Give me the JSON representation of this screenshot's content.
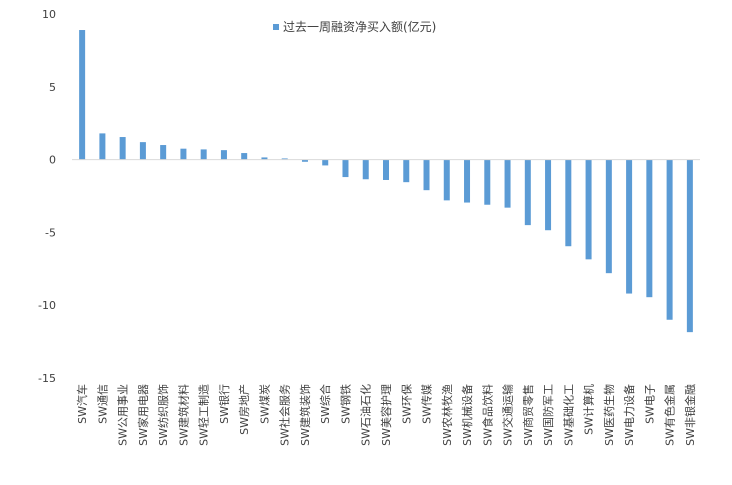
{
  "chart_data": {
    "type": "bar",
    "title": "",
    "xlabel": "",
    "ylabel": "",
    "ylim": [
      -15,
      10
    ],
    "yticks": [
      10,
      5,
      0,
      -5,
      -10,
      -15
    ],
    "grid": false,
    "legend_position": "top-center",
    "series": [
      {
        "name": "过去一周融资净买入额(亿元)",
        "color": "#5b9bd5",
        "values": [
          8.9,
          1.8,
          1.55,
          1.2,
          1.0,
          0.75,
          0.7,
          0.65,
          0.45,
          0.15,
          0.08,
          -0.15,
          -0.4,
          -1.2,
          -1.35,
          -1.4,
          -1.55,
          -2.1,
          -2.8,
          -2.95,
          -3.1,
          -3.3,
          -4.5,
          -4.85,
          -5.95,
          -6.85,
          -7.8,
          -9.2,
          -9.45,
          -11.0,
          -11.85
        ]
      }
    ],
    "categories": [
      "SW汽车",
      "SW通信",
      "SW公用事业",
      "SW家用电器",
      "SW纺织服饰",
      "SW建筑材料",
      "SW轻工制造",
      "SW银行",
      "SW房地产",
      "SW煤炭",
      "SW社会服务",
      "SW建筑装饰",
      "SW综合",
      "SW钢铁",
      "SW石油石化",
      "SW美容护理",
      "SW环保",
      "SW传媒",
      "SW农林牧渔",
      "SW机械设备",
      "SW食品饮料",
      "SW交通运输",
      "SW商贸零售",
      "SW国防军工",
      "SW基础化工",
      "SW计算机",
      "SW医药生物",
      "SW电力设备",
      "SW电子",
      "SW有色金属",
      "SW非银金融"
    ]
  }
}
